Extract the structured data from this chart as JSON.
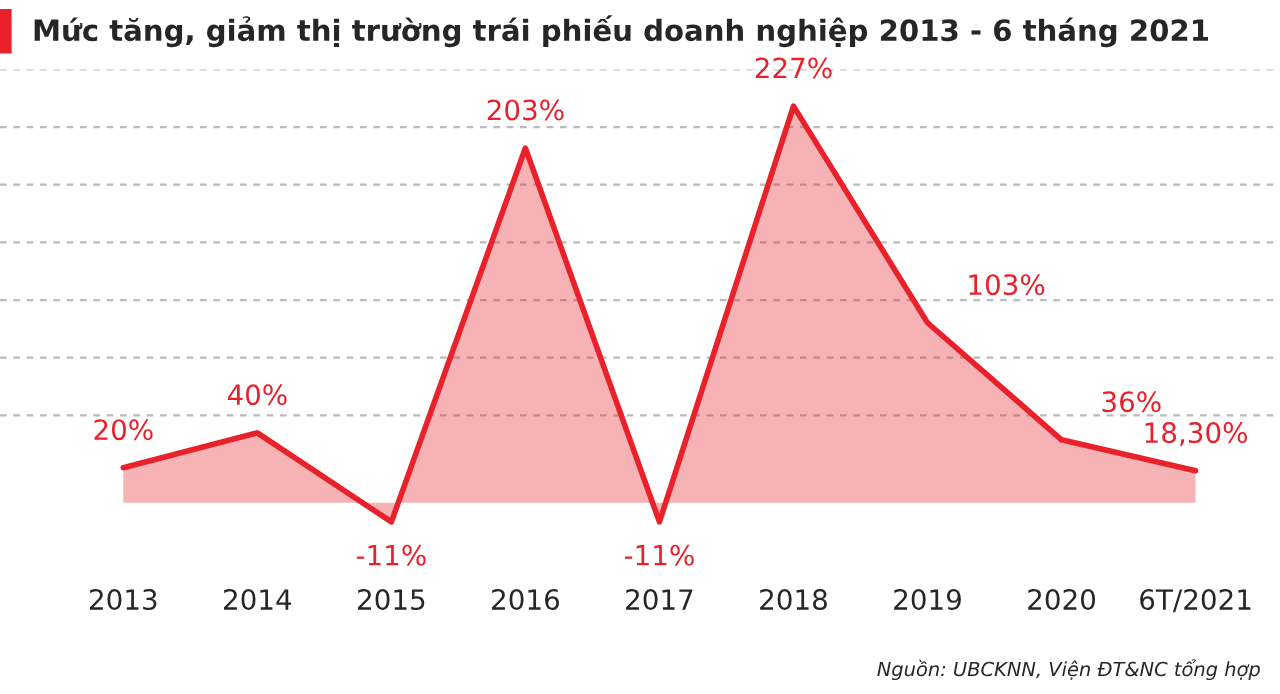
{
  "chart_data": {
    "type": "area",
    "title": "Mức tăng, giảm thị trường trái phiếu doanh nghiệp 2013 - 6 tháng 2021",
    "categories": [
      "2013",
      "2014",
      "2015",
      "2016",
      "2017",
      "2018",
      "2019",
      "2020",
      "6T/2021"
    ],
    "series": [
      {
        "color": "#e8212b",
        "values": [
          20,
          40,
          -11,
          203,
          -11,
          227,
          103,
          36,
          18.3
        ],
        "value_labels": [
          "20%",
          "40%",
          "-11%",
          "203%",
          "-11%",
          "227%",
          "103%",
          "36%",
          "18,30%"
        ]
      }
    ],
    "yticks": [
      {
        "value": 50,
        "label": null
      },
      {
        "value": 83,
        "label": null
      },
      {
        "value": 116,
        "label": null
      },
      {
        "value": 149,
        "label": null
      },
      {
        "value": 182,
        "label": null
      },
      {
        "value": 215,
        "label": null
      },
      {
        "value": 248,
        "label": null
      }
    ],
    "grid": "y",
    "line_style": "solid",
    "marker": "none",
    "tick_labels": "x",
    "annotations": [
      "Nguồn: UBCKNN, Viện ĐT&NC tổng hợp"
    ]
  }
}
